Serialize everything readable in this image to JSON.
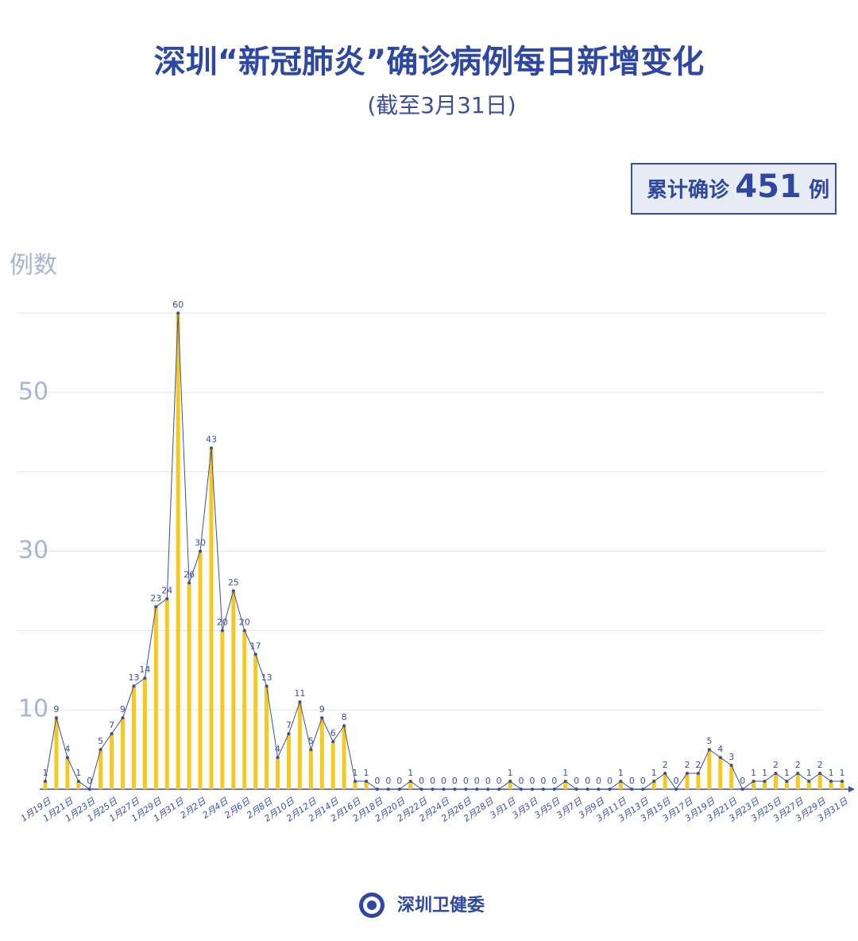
{
  "chart_data": {
    "type": "bar-line",
    "title": "深圳“新冠肺炎”确诊病例每日新增变化",
    "subtitle": "(截至3月31日)",
    "total_prefix": "累计确诊",
    "total": 451,
    "total_suffix": "例",
    "y_label": "例数",
    "source": "深圳卫健委",
    "bar_color": "#f7c81e",
    "line_color": "#3a4f9e",
    "categories": [
      "1月19日",
      null,
      "1月21日",
      null,
      "1月23日",
      null,
      "1月25日",
      null,
      "1月27日",
      null,
      "1月29日",
      null,
      "1月31日",
      null,
      "2月2日",
      null,
      "2月4日",
      null,
      "2月6日",
      null,
      "2月8日",
      null,
      "2月10日",
      null,
      "2月12日",
      null,
      "2月14日",
      null,
      "2月16日",
      null,
      "2月18日",
      null,
      "2月20日",
      null,
      "2月22日",
      null,
      "2月24日",
      null,
      "2月26日",
      null,
      "2月28日",
      null,
      "3月1日",
      null,
      "3月3日",
      null,
      "3月5日",
      null,
      "3月7日",
      null,
      "3月9日",
      null,
      "3月11日",
      null,
      "3月13日",
      null,
      "3月15日",
      null,
      "3月17日",
      null,
      "3月19日",
      null,
      "3月21日",
      null,
      "3月23日",
      null,
      "3月25日",
      null,
      "3月27日",
      null,
      "3月29日",
      null,
      "3月31日"
    ],
    "values": [
      1,
      9,
      4,
      1,
      0,
      5,
      7,
      9,
      13,
      14,
      23,
      24,
      60,
      26,
      30,
      43,
      20,
      25,
      20,
      17,
      13,
      4,
      7,
      11,
      5,
      9,
      6,
      8,
      1,
      1,
      0,
      0,
      0,
      1,
      0,
      0,
      0,
      0,
      0,
      0,
      0,
      0,
      1,
      0,
      0,
      0,
      0,
      1,
      0,
      0,
      0,
      0,
      1,
      0,
      0,
      1,
      2,
      0,
      2,
      2,
      5,
      4,
      3,
      0,
      1,
      1,
      2,
      1,
      2,
      1,
      2,
      1,
      1
    ],
    "ylim": [
      0,
      60
    ],
    "yticks": [
      10,
      {
        "value": 20,
        "label": null
      },
      30,
      {
        "value": 40,
        "label": null
      },
      50,
      {
        "value": 60,
        "label": null
      }
    ],
    "grid": true
  }
}
